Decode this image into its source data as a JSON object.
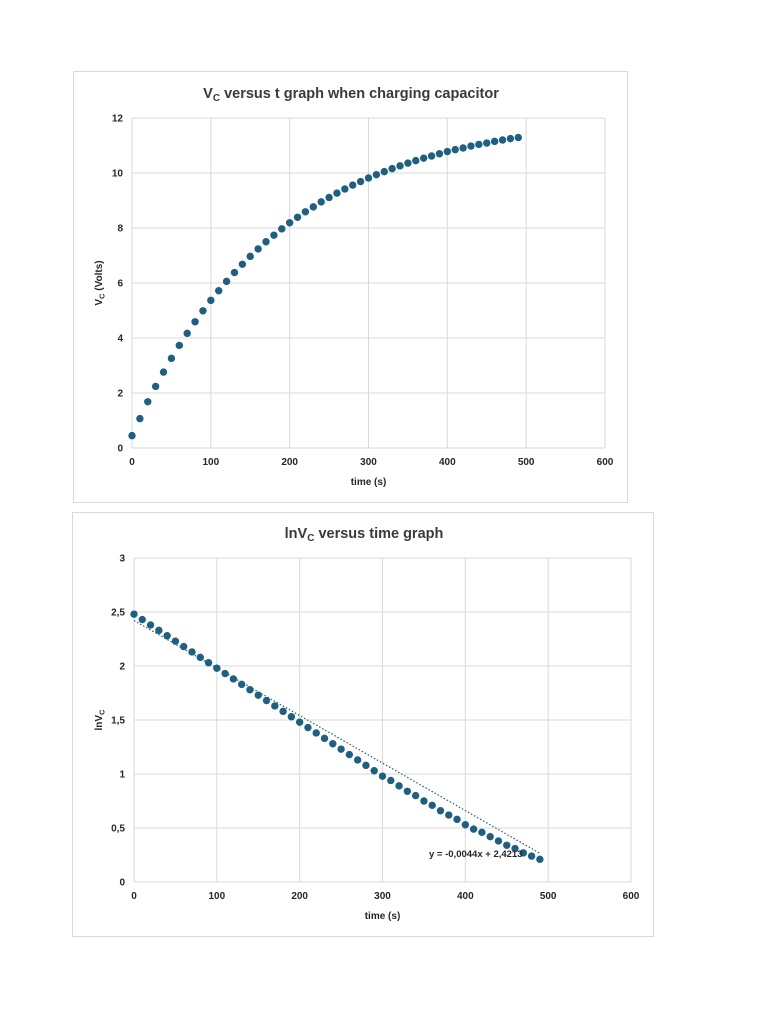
{
  "chart_data": [
    {
      "type": "scatter",
      "title_main": "V",
      "title_sub": "C",
      "title_rest": " versus t graph when charging capacitor",
      "xlabel": "time (s)",
      "ylabel_main": "V",
      "ylabel_sub": "C",
      "ylabel_rest": " (Volts)",
      "xlim": [
        0,
        600
      ],
      "ylim": [
        0,
        12
      ],
      "xticks": [
        "0",
        "100",
        "200",
        "300",
        "400",
        "500",
        "600"
      ],
      "yticks": [
        "0",
        "2",
        "4",
        "6",
        "8",
        "10",
        "12"
      ],
      "grid": true,
      "marker_color": "#1f5f7f",
      "x": [
        0,
        10,
        20,
        30,
        40,
        50,
        60,
        70,
        80,
        90,
        100,
        110,
        120,
        130,
        140,
        150,
        160,
        170,
        180,
        190,
        200,
        210,
        220,
        230,
        240,
        250,
        260,
        270,
        280,
        290,
        300,
        310,
        320,
        330,
        340,
        350,
        360,
        370,
        380,
        390,
        400,
        410,
        420,
        430,
        440,
        450,
        460,
        470,
        480,
        490
      ],
      "y": [
        0.45,
        1.07,
        1.68,
        2.24,
        2.76,
        3.26,
        3.73,
        4.17,
        4.59,
        4.99,
        5.37,
        5.72,
        6.06,
        6.38,
        6.68,
        6.97,
        7.24,
        7.5,
        7.74,
        7.97,
        8.19,
        8.39,
        8.59,
        8.77,
        8.95,
        9.11,
        9.27,
        9.42,
        9.56,
        9.69,
        9.82,
        9.94,
        10.05,
        10.16,
        10.26,
        10.36,
        10.45,
        10.54,
        10.62,
        10.7,
        10.78,
        10.85,
        10.91,
        10.98,
        11.04,
        11.09,
        11.15,
        11.2,
        11.25,
        11.29
      ]
    },
    {
      "type": "scatter",
      "title_main": "lnV",
      "title_sub": "C",
      "title_rest": " versus time graph",
      "xlabel": "time (s)",
      "ylabel_main": "lnV",
      "ylabel_sub": "C",
      "ylabel_rest": "",
      "xlim": [
        0,
        600
      ],
      "ylim": [
        0,
        3
      ],
      "xticks": [
        "0",
        "100",
        "200",
        "300",
        "400",
        "500",
        "600"
      ],
      "yticks": [
        "0",
        "0,5",
        "1",
        "1,5",
        "2",
        "2,5",
        "3"
      ],
      "grid": true,
      "marker_color": "#1f5f7f",
      "trendline": {
        "slope": -0.0044,
        "intercept": 2.4213,
        "label": "y = -0,0044x + 2,4213",
        "x_range": [
          0,
          490
        ]
      },
      "x": [
        0,
        10,
        20,
        30,
        40,
        50,
        60,
        70,
        80,
        90,
        100,
        110,
        120,
        130,
        140,
        150,
        160,
        170,
        180,
        190,
        200,
        210,
        220,
        230,
        240,
        250,
        260,
        270,
        280,
        290,
        300,
        310,
        320,
        330,
        340,
        350,
        360,
        370,
        380,
        390,
        400,
        410,
        420,
        430,
        440,
        450,
        460,
        470,
        480,
        490
      ],
      "y": [
        2.48,
        2.43,
        2.38,
        2.33,
        2.28,
        2.23,
        2.18,
        2.13,
        2.08,
        2.03,
        1.98,
        1.93,
        1.88,
        1.83,
        1.78,
        1.73,
        1.68,
        1.63,
        1.58,
        1.53,
        1.48,
        1.43,
        1.38,
        1.33,
        1.28,
        1.23,
        1.18,
        1.13,
        1.08,
        1.03,
        0.98,
        0.94,
        0.89,
        0.84,
        0.8,
        0.75,
        0.71,
        0.66,
        0.62,
        0.58,
        0.53,
        0.49,
        0.46,
        0.42,
        0.38,
        0.34,
        0.31,
        0.27,
        0.24,
        0.21
      ]
    }
  ]
}
